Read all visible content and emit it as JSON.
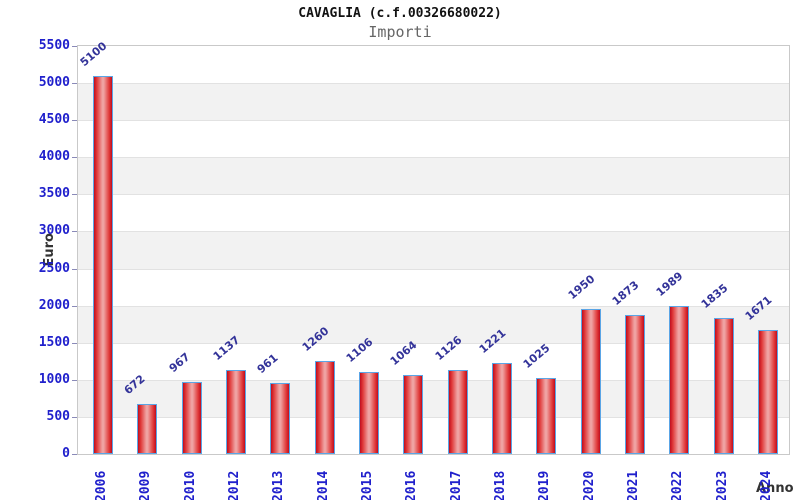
{
  "header": {
    "title": "CAVAGLIA (c.f.00326680022)",
    "subtitle": "Importi"
  },
  "chart_data": {
    "type": "bar",
    "title": "CAVAGLIA (c.f.00326680022)",
    "subtitle": "Importi",
    "xlabel": "Anno",
    "ylabel": "Euro",
    "categories": [
      "2006",
      "2009",
      "2010",
      "2012",
      "2013",
      "2014",
      "2015",
      "2016",
      "2017",
      "2018",
      "2019",
      "2020",
      "2021",
      "2022",
      "2023",
      "2024"
    ],
    "values": [
      5100,
      672,
      967,
      1137,
      961,
      1260,
      1106,
      1064,
      1126,
      1221,
      1025,
      1950,
      1873,
      1989,
      1835,
      1671
    ],
    "ylim": [
      0,
      5500
    ],
    "ytick_step": 500,
    "grid": "alternating-horizontal-bands",
    "legend": "none",
    "colors": {
      "bar_edge": "#c00d1e",
      "bar_center": "#efa2a2",
      "bar_border": "#5aa5e6",
      "tick_label": "#2020cc",
      "value_label": "#333399",
      "band_gray": "#f2f2f2",
      "band_white": "#ffffff",
      "plot_border": "#c9c9c9",
      "axis_title": "#333333",
      "title": "#111111",
      "subtitle": "#666666"
    }
  }
}
